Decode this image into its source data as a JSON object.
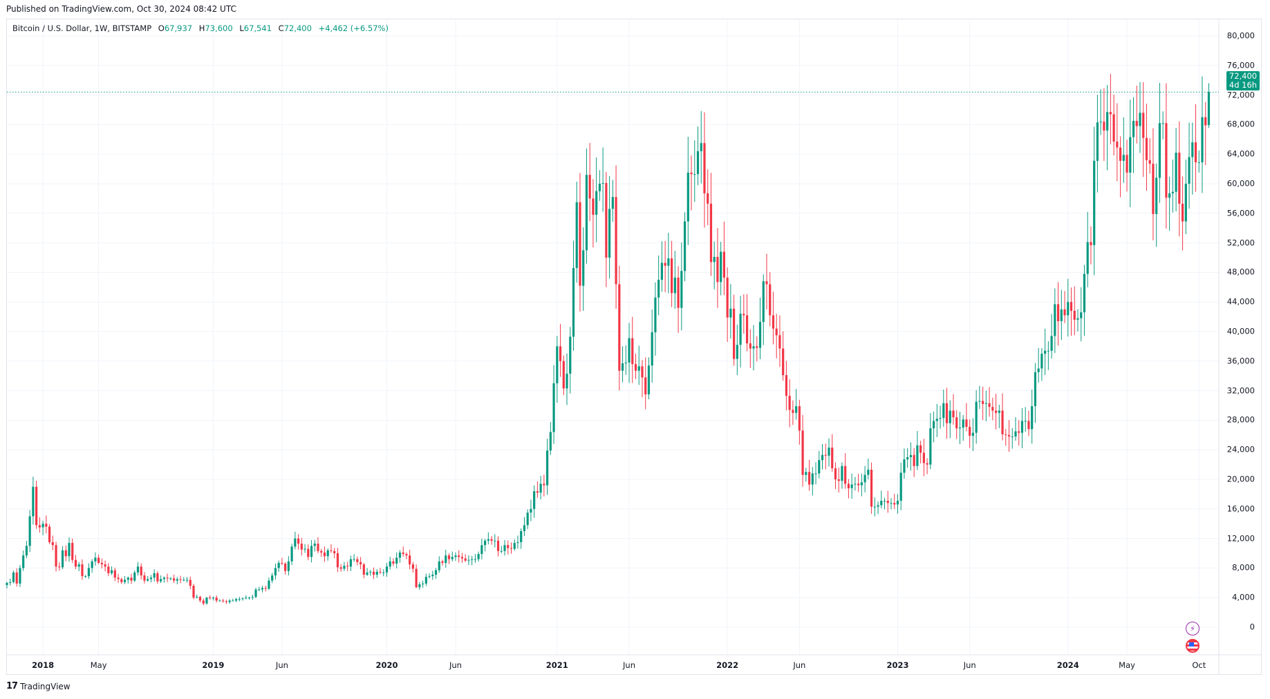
{
  "published": "Published on TradingView.com, Oct 30, 2024 08:42 UTC",
  "legend": {
    "symbol": "Bitcoin / U.S. Dollar, 1W, BITSTAMP",
    "o_label": "O",
    "o": "67,937",
    "h_label": "H",
    "h": "73,600",
    "l_label": "L",
    "l": "67,541",
    "c_label": "C",
    "c": "72,400",
    "change": "+4,462 (+6.57%)"
  },
  "last_price": {
    "value": "72,400",
    "countdown": "4d 16h"
  },
  "footer": {
    "brand": "TradingView",
    "logo": "TV"
  },
  "colors": {
    "up": "#089981",
    "down": "#f23645",
    "grid": "#f0f3fa"
  },
  "icons": [
    "lightning-icon",
    "us-flag-icon"
  ],
  "chart_data": {
    "type": "candlestick",
    "title": "Bitcoin / U.S. Dollar, 1W, BITSTAMP",
    "interval": "1W",
    "units": "USD thousands",
    "start_week": "2017-10-16",
    "first_open": 5.7,
    "ylim": [
      0,
      80
    ],
    "grid": true,
    "y_ticks": [
      "80,000",
      "76,000",
      "72,000",
      "68,000",
      "64,000",
      "60,000",
      "56,000",
      "52,000",
      "48,000",
      "44,000",
      "40,000",
      "36,000",
      "32,000",
      "28,000",
      "24,000",
      "20,000",
      "16,000",
      "12,000",
      "8,000",
      "4,000",
      "0"
    ],
    "x_ticks": [
      {
        "label": "2018",
        "week": 11,
        "year": true
      },
      {
        "label": "May",
        "week": 28
      },
      {
        "label": "2019",
        "week": 63,
        "year": true
      },
      {
        "label": "Jun",
        "week": 84
      },
      {
        "label": "2020",
        "week": 116,
        "year": true
      },
      {
        "label": "Jun",
        "week": 137
      },
      {
        "label": "2021",
        "week": 168,
        "year": true
      },
      {
        "label": "Jun",
        "week": 190
      },
      {
        "label": "2022",
        "week": 220,
        "year": true
      },
      {
        "label": "Jun",
        "week": 242
      },
      {
        "label": "2023",
        "week": 272,
        "year": true
      },
      {
        "label": "Jun",
        "week": 294
      },
      {
        "label": "2024",
        "week": 324,
        "year": true
      },
      {
        "label": "May",
        "week": 342
      },
      {
        "label": "Oct",
        "week": 364
      }
    ],
    "closes": [
      6.0,
      6.1,
      7.4,
      5.9,
      8.0,
      9.7,
      11.0,
      15.0,
      19.0,
      13.8,
      13.5,
      14.0,
      13.6,
      11.5,
      11.1,
      8.2,
      8.1,
      10.4,
      9.6,
      11.4,
      9.1,
      8.2,
      8.5,
      6.9,
      6.9,
      8.0,
      8.9,
      9.4,
      8.7,
      8.5,
      8.2,
      7.3,
      7.7,
      6.7,
      6.5,
      6.1,
      6.4,
      6.7,
      6.3,
      7.4,
      8.2,
      7.0,
      6.3,
      6.5,
      6.7,
      7.3,
      6.2,
      6.5,
      6.7,
      6.6,
      6.6,
      6.3,
      6.5,
      6.4,
      6.4,
      6.4,
      5.6,
      4.0,
      4.1,
      3.6,
      3.2,
      4.0,
      3.9,
      4.0,
      3.6,
      3.6,
      3.5,
      3.4,
      3.6,
      3.6,
      3.8,
      3.8,
      3.9,
      4.0,
      4.0,
      4.1,
      5.1,
      5.1,
      5.3,
      5.2,
      6.3,
      7.0,
      8.0,
      8.7,
      8.6,
      7.6,
      8.9,
      10.9,
      12.0,
      11.3,
      10.5,
      10.6,
      9.5,
      11.0,
      11.3,
      10.3,
      10.1,
      9.6,
      10.4,
      10.3,
      10.0,
      8.1,
      7.9,
      8.3,
      8.2,
      9.2,
      9.2,
      8.8,
      8.5,
      7.1,
      7.4,
      7.5,
      7.1,
      7.5,
      7.4,
      7.4,
      8.2,
      8.9,
      8.6,
      9.4,
      10.1,
      9.9,
      9.7,
      8.5,
      7.9,
      5.4,
      5.8,
      5.9,
      6.8,
      6.9,
      7.1,
      7.7,
      8.9,
      8.7,
      9.7,
      9.2,
      9.5,
      9.7,
      9.5,
      9.3,
      9.0,
      9.1,
      9.2,
      9.2,
      9.9,
      11.1,
      11.7,
      11.9,
      11.7,
      11.7,
      10.3,
      10.3,
      11.1,
      10.7,
      10.6,
      11.4,
      11.5,
      13.0,
      13.8,
      15.5,
      16.0,
      18.4,
      18.2,
      19.4,
      19.2,
      23.9,
      26.4,
      33.0,
      38.0,
      36.0,
      32.3,
      34.3,
      39.3,
      48.6,
      57.5,
      46.2,
      51.0,
      61.2,
      58.0,
      55.8,
      59.0,
      60.0,
      60.1,
      50.0,
      56.6,
      58.2,
      46.4,
      34.7,
      35.7,
      35.8,
      39.1,
      35.6,
      34.7,
      35.3,
      33.8,
      31.5,
      35.4,
      39.9,
      44.6,
      47.0,
      49.3,
      48.9,
      49.9,
      45.2,
      47.3,
      43.2,
      48.2,
      54.9,
      61.5,
      61.3,
      61.3,
      64.4,
      65.5,
      58.7,
      57.3,
      49.4,
      50.1,
      46.7,
      50.8,
      47.3,
      41.9,
      43.1,
      36.3,
      38.2,
      42.4,
      42.2,
      38.4,
      37.7,
      38.0,
      37.8,
      41.3,
      46.8,
      46.4,
      42.2,
      40.4,
      39.5,
      37.7,
      34.1,
      31.3,
      29.4,
      29.0,
      29.9,
      26.6,
      20.6,
      21.0,
      19.3,
      20.8,
      20.8,
      22.6,
      23.3,
      23.2,
      24.3,
      21.5,
      20.0,
      19.8,
      21.8,
      19.4,
      18.8,
      19.3,
      19.4,
      19.2,
      19.6,
      20.6,
      21.3,
      16.3,
      16.3,
      16.5,
      17.1,
      17.1,
      16.8,
      16.8,
      16.6,
      17.1,
      20.9,
      22.7,
      23.0,
      23.3,
      21.8,
      24.6,
      23.6,
      22.2,
      22.0,
      26.9,
      27.9,
      28.2,
      28.3,
      30.3,
      27.6,
      29.3,
      28.4,
      26.9,
      27.0,
      28.1,
      27.1,
      25.9,
      26.3,
      30.5,
      30.6,
      30.2,
      30.3,
      29.8,
      29.3,
      29.0,
      29.3,
      26.1,
      26.0,
      25.8,
      25.8,
      26.5,
      26.3,
      27.9,
      27.9,
      26.8,
      29.9,
      34.5,
      35.0,
      37.0,
      37.4,
      37.4,
      39.4,
      43.7,
      41.4,
      43.0,
      42.2,
      44.0,
      42.8,
      41.6,
      41.8,
      42.6,
      47.8,
      52.1,
      51.7,
      63.1,
      68.3,
      68.4,
      67.2,
      69.7,
      69.4,
      65.7,
      64.9,
      63.1,
      63.9,
      61.5,
      66.3,
      68.5,
      67.8,
      69.6,
      66.2,
      63.2,
      62.7,
      55.9,
      60.8,
      68.2,
      68.2,
      58.1,
      58.7,
      58.9,
      64.2,
      57.3,
      54.9,
      60.0,
      63.6,
      65.6,
      62.9,
      62.9,
      69.0,
      67.9,
      72.4
    ],
    "last_candle": {
      "open": 67.937,
      "high": 73.6,
      "low": 67.541,
      "close": 72.4
    }
  }
}
